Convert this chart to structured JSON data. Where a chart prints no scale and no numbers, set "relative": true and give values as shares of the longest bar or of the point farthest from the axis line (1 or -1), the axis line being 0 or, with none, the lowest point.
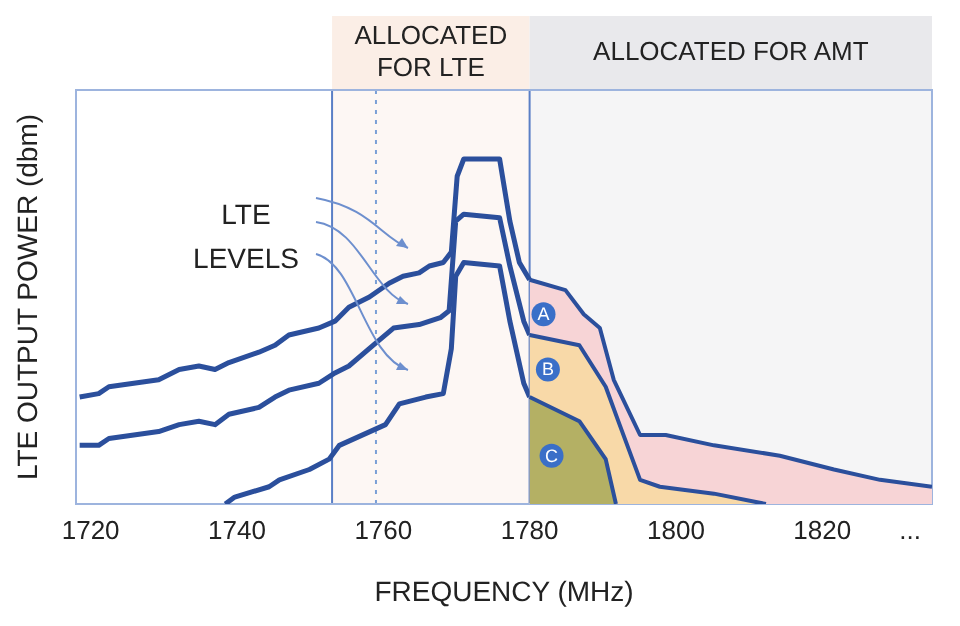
{
  "chart_data": {
    "type": "line",
    "relative": true,
    "xlabel": "FREQUENCY (MHz)",
    "ylabel": "LTE OUTPUT POWER (dbm)",
    "xlim": [
      1718,
      1835
    ],
    "xticks": [
      1720,
      1740,
      1760,
      1780,
      1800,
      1820,
      {
        "value": 1832,
        "label": "..."
      }
    ],
    "grid": false,
    "legend": false,
    "marker": "none",
    "line_style": "solid",
    "series": [
      {
        "color": "#2b4f9c",
        "x": [
          1718.5,
          1721.1,
          1722.5,
          1729.3,
          1732.1,
          1734.8,
          1737,
          1738.9,
          1743,
          1745.2,
          1747.1,
          1751.2,
          1753.4,
          1755.3,
          1758.1,
          1760.8,
          1762.7,
          1764.9,
          1766.3,
          1768.2,
          1769.3,
          1770.1,
          1771,
          1774.5,
          1775.9,
          1777.3,
          1778.6,
          1780
        ],
        "values": [
          0.31,
          0.32,
          0.34,
          0.36,
          0.39,
          0.4,
          0.39,
          0.41,
          0.44,
          0.46,
          0.49,
          0.51,
          0.53,
          0.57,
          0.6,
          0.64,
          0.66,
          0.67,
          0.69,
          0.7,
          0.73,
          0.95,
          1,
          1,
          1,
          0.82,
          0.7,
          0.65
        ]
      },
      {
        "color": "#2b4f9c",
        "x": [
          1718.5,
          1721.1,
          1722.5,
          1729.3,
          1732.1,
          1734.8,
          1737,
          1738.9,
          1743,
          1745.2,
          1747.1,
          1751.2,
          1753.4,
          1755.3,
          1758.6,
          1761.4,
          1764.9,
          1767.8,
          1769,
          1769.9,
          1771,
          1775.9,
          1777.3,
          1779.2,
          1780
        ],
        "values": [
          0.17,
          0.17,
          0.19,
          0.21,
          0.23,
          0.24,
          0.23,
          0.26,
          0.28,
          0.31,
          0.33,
          0.35,
          0.38,
          0.4,
          0.46,
          0.51,
          0.52,
          0.54,
          0.56,
          0.82,
          0.84,
          0.83,
          0.69,
          0.53,
          0.49
        ]
      },
      {
        "color": "#2b4f9c",
        "x": [
          1738.4,
          1739.7,
          1744.4,
          1745.8,
          1749.9,
          1752.6,
          1754,
          1760.3,
          1762.2,
          1765.8,
          1768.2,
          1769.3,
          1769.9,
          1771,
          1775.9,
          1777.3,
          1779.2,
          1780
        ],
        "values": [
          0,
          0.02,
          0.05,
          0.07,
          0.1,
          0.13,
          0.17,
          0.23,
          0.29,
          0.31,
          0.32,
          0.45,
          0.66,
          0.7,
          0.69,
          0.53,
          0.35,
          0.31
        ]
      },
      {
        "type": "area",
        "color": "#f7d4d6",
        "x": [
          1780,
          1784.9,
          1787.4,
          1789.6,
          1791.5,
          1795.1,
          1798.6,
          1805.2,
          1814.2,
          1821.6,
          1827.9,
          1835
        ],
        "values": [
          0.65,
          0.62,
          0.55,
          0.51,
          0.36,
          0.2,
          0.2,
          0.17,
          0.14,
          0.1,
          0.07,
          0.05
        ]
      },
      {
        "type": "area",
        "color": "#f8d9a8",
        "x": [
          1780,
          1786.8,
          1790.4,
          1792.3,
          1795.1,
          1797.8,
          1805.2,
          1812.3
        ],
        "values": [
          0.49,
          0.46,
          0.34,
          0.23,
          0.07,
          0.05,
          0.03,
          0
        ]
      },
      {
        "type": "area",
        "color": "#b4b064",
        "x": [
          1780,
          1786.8,
          1790.4,
          1791.8
        ],
        "values": [
          0.31,
          0.24,
          0.13,
          0
        ]
      }
    ],
    "bands": [
      {
        "axis": "x",
        "from": 1753,
        "to": 1780,
        "label": "ALLOCATED FOR LTE",
        "color": "#fbeee6"
      },
      {
        "axis": "x",
        "from": 1780,
        "to": 1835,
        "label": "ALLOCATED FOR AMT",
        "color": "#e9e9ec"
      }
    ],
    "ref_lines": [
      {
        "axis": "x",
        "value": 1759,
        "line_style": "dotted",
        "color": "#7a9fd6"
      },
      {
        "axis": "x",
        "value": 1753,
        "line_style": "solid",
        "color": "#5a7fc6"
      },
      {
        "axis": "x",
        "value": 1780,
        "line_style": "solid",
        "color": "#5a7fc6"
      }
    ],
    "annotations": [
      "LTE LEVELS",
      {
        "text": "A",
        "x": 1781.9,
        "y": 0.55
      },
      {
        "text": "B",
        "x": 1782.5,
        "y": 0.39
      },
      {
        "text": "C",
        "x": 1783,
        "y": 0.14
      }
    ]
  }
}
